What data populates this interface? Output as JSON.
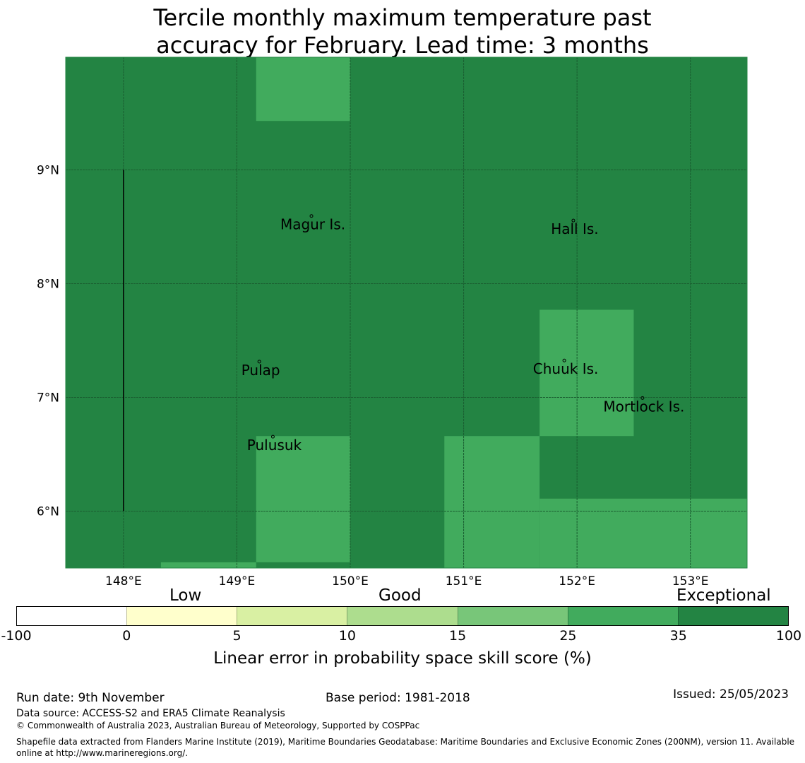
{
  "title_line1": "Tercile monthly maximum temperature past",
  "title_line2": "accuracy for February. Lead time: 3 months",
  "colors": {
    "dark": "#238443",
    "light": "#41ab5d",
    "grid": "#1a5e30"
  },
  "map": {
    "lon_range": [
      147.49,
      153.5
    ],
    "lat_range": [
      5.5,
      9.99
    ],
    "lon_ticks": [
      {
        "v": 148,
        "label": "148°E"
      },
      {
        "v": 149,
        "label": "149°E"
      },
      {
        "v": 150,
        "label": "150°E"
      },
      {
        "v": 151,
        "label": "151°E"
      },
      {
        "v": 152,
        "label": "152°E"
      },
      {
        "v": 153,
        "label": "153°E"
      }
    ],
    "lat_ticks": [
      {
        "v": 9,
        "label": "9°N"
      },
      {
        "v": 8,
        "label": "8°N"
      },
      {
        "v": 7,
        "label": "7°N"
      },
      {
        "v": 6,
        "label": "6°N"
      }
    ],
    "background_category": "35 to 100",
    "cells_25_to_35": [
      {
        "lon": [
          149.17,
          150.0
        ],
        "lat": [
          9.43,
          9.99
        ]
      },
      {
        "lon": [
          151.67,
          152.5
        ],
        "lat": [
          6.66,
          7.77
        ]
      },
      {
        "lon": [
          149.17,
          150.0
        ],
        "lat": [
          5.55,
          6.66
        ]
      },
      {
        "lon": [
          150.83,
          151.67
        ],
        "lat": [
          5.5,
          6.66
        ]
      },
      {
        "lon": [
          151.67,
          153.5
        ],
        "lat": [
          5.5,
          6.11
        ]
      },
      {
        "lon": [
          148.33,
          149.17
        ],
        "lat": [
          5.5,
          5.55
        ]
      }
    ],
    "eez_boundary": {
      "lon": 148.0,
      "lat": [
        6.0,
        9.0
      ]
    },
    "places": [
      {
        "name": "Magur Is.",
        "lon": 149.67,
        "lat": 8.52
      },
      {
        "name": "Hall Is.",
        "lon": 151.98,
        "lat": 8.48
      },
      {
        "name": "Pulap",
        "lon": 149.21,
        "lat": 7.24
      },
      {
        "name": "Chuuk Is.",
        "lon": 151.9,
        "lat": 7.25
      },
      {
        "name": "Mortlock Is.",
        "lon": 152.59,
        "lat": 6.92
      },
      {
        "name": "Pulusuk",
        "lon": 149.33,
        "lat": 6.58
      }
    ]
  },
  "colorbar": {
    "categories": [
      "Low",
      "Good",
      "Exceptional"
    ],
    "ticks": [
      "-100",
      "0",
      "5",
      "10",
      "15",
      "25",
      "35",
      "100"
    ],
    "colors": [
      "#ffffff",
      "#ffffcc",
      "#d9f0a3",
      "#addd8e",
      "#78c679",
      "#41ab5d",
      "#238443"
    ],
    "label": "Linear error in probability space skill score (%)"
  },
  "footer": {
    "run_date": "Run date: 9th November",
    "base_period": "Base period: 1981-2018",
    "issued": "Issued: 25/05/2023",
    "data_source": "Data source: ACCESS-S2 and ERA5 Climate Reanalysis",
    "copyright": "© Commonwealth of Australia 2023, Australian Bureau of Meteorology, Supported by COSPPac",
    "shapefile": "Shapefile data extracted from Flanders Marine Institute (2019), Maritime Boundaries Geodatabase: Maritime Boundaries and Exclusive Economic Zones (200NM), version 11. Available online at http://www.marineregions.org/."
  }
}
